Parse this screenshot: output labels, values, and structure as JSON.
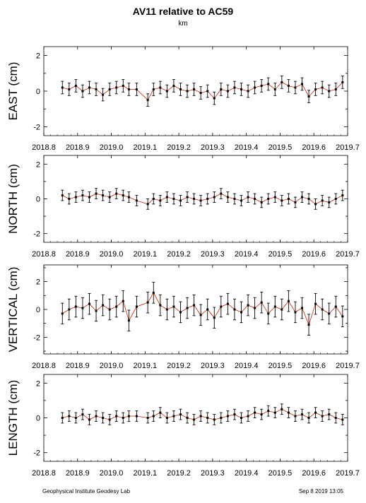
{
  "header": {
    "title": "AV11 relative to AC59",
    "subtitle": "km"
  },
  "footer": {
    "left": "Geophysical Institute Geodesy Lab",
    "right": "Sep 8 2019 13:05"
  },
  "colors": {
    "points": "#000000",
    "line": "#cc2200",
    "frame": "#000000"
  },
  "chart_data": [
    {
      "type": "scatter",
      "ylabel": "EAST (cm)",
      "xlim": [
        2018.8,
        2019.7
      ],
      "ylim": [
        -2.5,
        2.5
      ],
      "yticks": [
        -2,
        0,
        2
      ],
      "xticks": [
        2018.8,
        2018.9,
        2019.0,
        2019.1,
        2019.2,
        2019.3,
        2019.4,
        2019.5,
        2019.6,
        2019.7
      ],
      "xtick_labels": [
        "2018.8",
        "2018.9",
        "2019.0",
        "2019.1",
        "2019.2",
        "2019.3",
        "2019.4",
        "2019.5",
        "2019.6",
        "2019.7"
      ],
      "grid": false,
      "segments": [
        {
          "x": [
            2018.855,
            2018.875,
            2018.895,
            2018.915,
            2018.935,
            2018.955,
            2018.975,
            2018.995,
            2019.015,
            2019.035,
            2019.052
          ],
          "y": [
            0.2,
            0.1,
            0.3,
            0.0,
            0.2,
            0.1,
            -0.2,
            0.1,
            0.2,
            0.3,
            0.1
          ]
        },
        {
          "x": [
            2019.075
          ],
          "y": [
            0.1
          ]
        },
        {
          "x": [
            2019.108,
            2019.125,
            2019.145,
            2019.165,
            2019.185,
            2019.205,
            2019.225,
            2019.245,
            2019.265,
            2019.285,
            2019.305,
            2019.325,
            2019.345,
            2019.365,
            2019.385,
            2019.405,
            2019.425,
            2019.445,
            2019.465,
            2019.485,
            2019.505,
            2019.525,
            2019.545,
            2019.565,
            2019.585,
            2019.605,
            2019.625,
            2019.645,
            2019.665,
            2019.685
          ],
          "y": [
            -0.5,
            0.1,
            0.2,
            0.0,
            0.3,
            0.1,
            0.0,
            0.1,
            -0.1,
            0.0,
            -0.4,
            0.1,
            0.0,
            0.2,
            0.1,
            0.0,
            0.2,
            0.3,
            0.4,
            0.1,
            0.5,
            0.3,
            0.2,
            0.4,
            -0.3,
            0.1,
            0.2,
            0.0,
            0.1,
            0.5
          ]
        }
      ],
      "error_cm": 0.35
    },
    {
      "type": "scatter",
      "ylabel": "NORTH (cm)",
      "xlim": [
        2018.8,
        2019.7
      ],
      "ylim": [
        -2.5,
        2.5
      ],
      "yticks": [
        -2,
        0,
        2
      ],
      "xticks": [
        2018.8,
        2018.9,
        2019.0,
        2019.1,
        2019.2,
        2019.3,
        2019.4,
        2019.5,
        2019.6,
        2019.7
      ],
      "xtick_labels": [
        "2018.8",
        "2018.9",
        "2019.0",
        "2019.1",
        "2019.2",
        "2019.3",
        "2019.4",
        "2019.5",
        "2019.6",
        "2019.7"
      ],
      "grid": false,
      "segments": [
        {
          "x": [
            2018.855,
            2018.875,
            2018.895,
            2018.915,
            2018.935,
            2018.955,
            2018.975,
            2018.995,
            2019.015,
            2019.035,
            2019.052
          ],
          "y": [
            0.2,
            0.0,
            0.1,
            0.2,
            0.1,
            0.3,
            0.2,
            0.1,
            0.3,
            0.2,
            0.1
          ]
        },
        {
          "x": [
            2019.075
          ],
          "y": [
            -0.1
          ]
        },
        {
          "x": [
            2019.108,
            2019.125,
            2019.145,
            2019.165,
            2019.185,
            2019.205,
            2019.225,
            2019.245,
            2019.265,
            2019.285,
            2019.305,
            2019.325,
            2019.345,
            2019.365,
            2019.385,
            2019.405,
            2019.425,
            2019.445,
            2019.465,
            2019.485,
            2019.505,
            2019.525,
            2019.545,
            2019.565,
            2019.585,
            2019.605,
            2019.625,
            2019.645,
            2019.665,
            2019.685
          ],
          "y": [
            -0.3,
            0.0,
            -0.1,
            0.1,
            0.0,
            -0.1,
            0.1,
            0.0,
            -0.1,
            0.0,
            0.1,
            0.3,
            0.1,
            0.0,
            -0.1,
            0.1,
            0.0,
            -0.2,
            0.0,
            0.1,
            -0.1,
            0.0,
            -0.2,
            0.1,
            0.0,
            -0.3,
            -0.1,
            -0.2,
            0.0,
            0.2
          ]
        }
      ],
      "error_cm": 0.3
    },
    {
      "type": "scatter",
      "ylabel": "VERTICAL (cm)",
      "xlim": [
        2018.8,
        2019.7
      ],
      "ylim": [
        -3.2,
        3.2
      ],
      "yticks": [
        -2,
        0,
        2
      ],
      "xticks": [
        2018.8,
        2018.9,
        2019.0,
        2019.1,
        2019.2,
        2019.3,
        2019.4,
        2019.5,
        2019.6,
        2019.7
      ],
      "xtick_labels": [
        "2018.8",
        "2018.9",
        "2019.0",
        "2019.1",
        "2019.2",
        "2019.3",
        "2019.4",
        "2019.5",
        "2019.6",
        "2019.7"
      ],
      "grid": false,
      "segments": [
        {
          "x": [
            2018.855,
            2018.875,
            2018.895,
            2018.915,
            2018.935,
            2018.955,
            2018.975,
            2018.995,
            2019.015,
            2019.035,
            2019.052
          ],
          "y": [
            -0.3,
            0.0,
            0.2,
            0.1,
            0.4,
            -0.1,
            0.3,
            0.0,
            0.2,
            0.6,
            -0.8
          ]
        },
        {
          "x": [
            2019.075
          ],
          "y": [
            0.2
          ]
        },
        {
          "x": [
            2019.108,
            2019.125,
            2019.145,
            2019.165,
            2019.185,
            2019.205,
            2019.225,
            2019.245,
            2019.265,
            2019.285,
            2019.305,
            2019.325,
            2019.345,
            2019.365,
            2019.385,
            2019.405,
            2019.425,
            2019.445,
            2019.465,
            2019.485,
            2019.505,
            2019.525,
            2019.545,
            2019.565,
            2019.585,
            2019.605,
            2019.625,
            2019.645,
            2019.665,
            2019.685
          ],
          "y": [
            0.5,
            1.2,
            0.3,
            0.0,
            0.2,
            -0.2,
            0.1,
            0.3,
            -0.4,
            0.0,
            -0.6,
            0.2,
            0.4,
            0.0,
            -0.2,
            0.3,
            0.1,
            0.5,
            -0.3,
            0.2,
            0.0,
            0.6,
            -0.2,
            0.1,
            -1.1,
            0.4,
            0.0,
            -0.3,
            0.2,
            -0.5
          ]
        }
      ],
      "error_cm": 0.75
    },
    {
      "type": "scatter",
      "ylabel": "LENGTH (cm)",
      "xlim": [
        2018.8,
        2019.7
      ],
      "ylim": [
        -2.5,
        2.5
      ],
      "yticks": [
        -2,
        0,
        2
      ],
      "xticks": [
        2018.8,
        2018.9,
        2019.0,
        2019.1,
        2019.2,
        2019.3,
        2019.4,
        2019.5,
        2019.6,
        2019.7
      ],
      "xtick_labels": [
        "2018.8",
        "2018.9",
        "2019.0",
        "2019.1",
        "2019.2",
        "2019.3",
        "2019.4",
        "2019.5",
        "2019.6",
        "2019.7"
      ],
      "grid": false,
      "segments": [
        {
          "x": [
            2018.855,
            2018.875,
            2018.895,
            2018.915,
            2018.935,
            2018.955,
            2018.975,
            2018.995,
            2019.015,
            2019.035,
            2019.052
          ],
          "y": [
            0.0,
            0.1,
            0.0,
            0.2,
            -0.1,
            0.1,
            0.0,
            -0.1,
            0.1,
            0.0,
            0.1
          ]
        },
        {
          "x": [
            2019.075
          ],
          "y": [
            0.1
          ]
        },
        {
          "x": [
            2019.108,
            2019.125,
            2019.145,
            2019.165,
            2019.185,
            2019.205,
            2019.225,
            2019.245,
            2019.265,
            2019.285,
            2019.305,
            2019.325,
            2019.345,
            2019.365,
            2019.385,
            2019.405,
            2019.425,
            2019.445,
            2019.465,
            2019.485,
            2019.505,
            2019.525,
            2019.545,
            2019.565,
            2019.585,
            2019.605,
            2019.625,
            2019.645,
            2019.665,
            2019.685
          ],
          "y": [
            0.0,
            0.1,
            0.3,
            0.0,
            0.1,
            0.2,
            0.0,
            -0.1,
            0.1,
            0.0,
            -0.1,
            0.0,
            0.1,
            0.2,
            0.0,
            0.1,
            0.3,
            0.2,
            0.4,
            0.3,
            0.5,
            0.3,
            0.1,
            0.2,
            0.0,
            0.3,
            0.1,
            0.2,
            0.0,
            -0.1
          ]
        }
      ],
      "error_cm": 0.3
    }
  ]
}
